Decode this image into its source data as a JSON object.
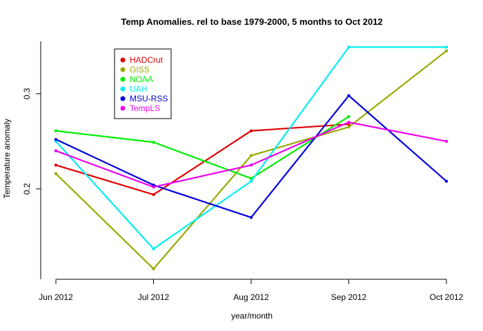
{
  "chart_data": {
    "type": "line",
    "title": "Temp Anomalies. rel to base 1979-2000, 5 months to Oct 2012",
    "xlabel": "year/month",
    "ylabel": "Temperature anomaly",
    "categories": [
      "Jun 2012",
      "Jul 2012",
      "Aug 2012",
      "Sep 2012",
      "Oct 2012"
    ],
    "yticks": [
      "0.2",
      "0.3"
    ],
    "ylim": [
      0.105,
      0.355
    ],
    "grid": false,
    "legend_position": "top-left",
    "series": [
      {
        "name": "HADCrut",
        "color": "#e00000",
        "values": [
          0.225,
          0.194,
          0.261,
          0.268,
          null
        ]
      },
      {
        "name": "GISS",
        "color": "#99aa00",
        "values": [
          0.216,
          0.116,
          0.235,
          0.265,
          0.345
        ]
      },
      {
        "name": "NOAA",
        "color": "#00ee00",
        "values": [
          0.261,
          0.249,
          0.211,
          0.276,
          null
        ]
      },
      {
        "name": "UAH",
        "color": "#00eeee",
        "values": [
          0.25,
          0.137,
          0.208,
          0.349,
          0.349
        ]
      },
      {
        "name": "MSU-RSS",
        "color": "#0000dd",
        "values": [
          0.252,
          0.204,
          0.17,
          0.298,
          0.208
        ]
      },
      {
        "name": "TempLS",
        "color": "#ee00ee",
        "values": [
          0.24,
          0.202,
          0.225,
          0.27,
          0.25
        ]
      }
    ]
  }
}
